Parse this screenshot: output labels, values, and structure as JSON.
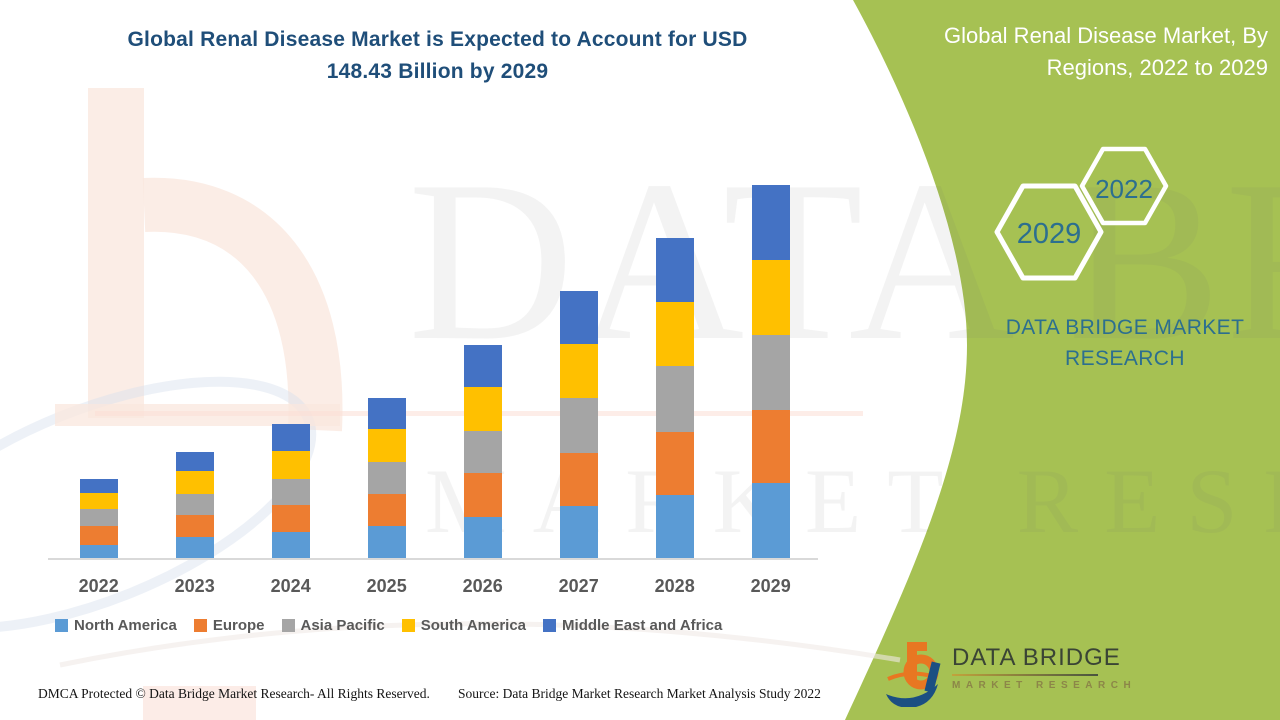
{
  "header": {
    "title_line1": "Global Renal Disease Market is Expected to Account for USD",
    "title_line2": "148.43 Billion by 2029"
  },
  "side_panel": {
    "title_line1": "Global Renal Disease Market, By",
    "title_line2": "Regions, 2022 to 2029",
    "hexagons": [
      {
        "label": "2029"
      },
      {
        "label": "2022"
      }
    ],
    "brand_line1": "DATA BRIDGE MARKET",
    "brand_line2": "RESEARCH",
    "logo": {
      "name_text": "DATA BRIDGE",
      "sub_text": "MARKET RESEARCH"
    }
  },
  "watermark": {
    "big_text_line1": "DATA BRIDGE",
    "big_text_line2": "MARKET RESEARCH"
  },
  "footer": {
    "left": "DMCA Protected © Data Bridge  Market Research-  All Rights Reserved.",
    "right": "Source: Data Bridge Market Research Market Analysis Study 2022"
  },
  "colors": {
    "title_navy": "#1F4E79",
    "panel_green": "#A6C153",
    "brand_teal": "#2C6F8F",
    "axis_text_gray": "#595959",
    "baseline_gray": "#D9D9D9",
    "logo_orange": "#E87722",
    "logo_navy": "#1B4F82"
  },
  "chart_data": {
    "type": "bar",
    "stacked": true,
    "title": "Global Renal Disease Market is Expected to Account for USD 148.43 Billion by 2029",
    "unit": "USD Billion",
    "categories": [
      "2022",
      "2023",
      "2024",
      "2025",
      "2026",
      "2027",
      "2028",
      "2029"
    ],
    "series": [
      {
        "name": "North America",
        "color": "#5B9BD5",
        "values": [
          5.3,
          8.4,
          10.3,
          12.7,
          16.3,
          20.6,
          24.9,
          29.8
        ]
      },
      {
        "name": "Europe",
        "color": "#ED7D31",
        "values": [
          7.6,
          8.5,
          10.9,
          12.6,
          17.5,
          21.2,
          25.2,
          29.2
        ]
      },
      {
        "name": "Asia Pacific",
        "color": "#A5A5A5",
        "values": [
          6.4,
          8.7,
          10.2,
          12.9,
          16.8,
          21.9,
          26.1,
          29.8
        ]
      },
      {
        "name": "South America",
        "color": "#FFC000",
        "values": [
          6.4,
          8.9,
          11.0,
          12.9,
          17.4,
          21.2,
          25.6,
          29.8
        ]
      },
      {
        "name": "Middle East and Africa",
        "color": "#4472C4",
        "values": [
          5.6,
          7.7,
          10.9,
          12.3,
          16.8,
          21.2,
          25.2,
          29.8
        ]
      }
    ],
    "estimated_totals": [
      31.3,
      42.2,
      53.3,
      63.4,
      84.8,
      106.1,
      127.0,
      148.4
    ],
    "highlight_total_2029": 148.43,
    "axes": {
      "x_visible": true,
      "y_visible": false,
      "gridlines": false
    },
    "legend_position": "bottom"
  }
}
